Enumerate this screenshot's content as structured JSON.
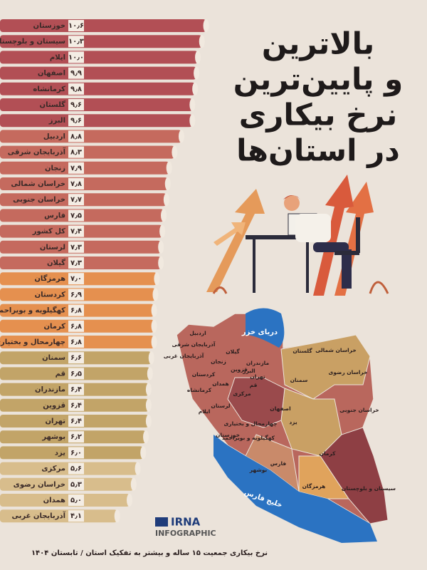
{
  "title_lines": [
    "بالاترین",
    "و پایین‌ترین",
    "نرخ بیکاری",
    "در استان‌ها"
  ],
  "chart_data": {
    "type": "bar",
    "orientation": "horizontal",
    "categories": [
      "خوزستان",
      "سیستان و بلوچستان",
      "ایلام",
      "اصفهان",
      "کرمانشاه",
      "گلستان",
      "البرز",
      "اردبیل",
      "آذربایجان شرقی",
      "زنجان",
      "خراسان شمالی",
      "خراسان جنوبی",
      "فارس",
      "کل کشور",
      "لرستان",
      "گیلان",
      "هرمزگان",
      "کردستان",
      "کهگیلویه و بویراحمد",
      "کرمان",
      "چهارمحال و بختیاری",
      "سمنان",
      "قم",
      "مازندران",
      "قزوین",
      "تهران",
      "بوشهر",
      "یزد",
      "مرکزی",
      "خراسان رضوی",
      "همدان",
      "آذربایجان غربی"
    ],
    "values": [
      10.6,
      10.3,
      10.0,
      9.9,
      9.8,
      9.6,
      9.6,
      8.8,
      8.3,
      7.9,
      7.8,
      7.7,
      7.5,
      7.4,
      7.3,
      7.3,
      7.0,
      6.9,
      6.8,
      6.8,
      6.8,
      6.6,
      6.5,
      6.4,
      6.4,
      6.4,
      6.2,
      6.0,
      5.6,
      5.3,
      5.0,
      4.1
    ],
    "value_labels": [
      "۱۰٫۶",
      "۱۰٫۳",
      "۱۰٫۰",
      "۹٫۹",
      "۹٫۸",
      "۹٫۶",
      "۹٫۶",
      "۸٫۸",
      "۸٫۳",
      "۷٫۹",
      "۷٫۸",
      "۷٫۷",
      "۷٫۵",
      "۷٫۴",
      "۷٫۳",
      "۷٫۳",
      "۷٫۰",
      "۶٫۹",
      "۶٫۸",
      "۶٫۸",
      "۶٫۸",
      "۶٫۶",
      "۶٫۵",
      "۶٫۴",
      "۶٫۴",
      "۶٫۴",
      "۶٫۲",
      "۶٫۰",
      "۵٫۶",
      "۵٫۳",
      "۵٫۰",
      "۴٫۱"
    ],
    "colors": [
      "#b24f55",
      "#b24f55",
      "#b24f55",
      "#b24f55",
      "#b24f55",
      "#b24f55",
      "#b24f55",
      "#c56a5e",
      "#c56a5e",
      "#c56a5e",
      "#c56a5e",
      "#c56a5e",
      "#c56a5e",
      "#c56a5e",
      "#c56a5e",
      "#c56a5e",
      "#e5904f",
      "#e5904f",
      "#e5904f",
      "#e5904f",
      "#e5904f",
      "#c2a468",
      "#c2a468",
      "#c2a468",
      "#c2a468",
      "#c2a468",
      "#c2a468",
      "#c2a468",
      "#d8bd8c",
      "#d8bd8c",
      "#d8bd8c",
      "#d8bd8c"
    ]
  },
  "map": {
    "labels": [
      "اردبیل",
      "آذربایجان شرقی",
      "آذربایجان غربی",
      "گلستان",
      "خراسان شمالی",
      "گیلان",
      "زنجان",
      "مازندران",
      "کردستان",
      "قزوین",
      "البرز",
      "تهران",
      "قم",
      "همدان",
      "سمنان",
      "خراسان رضوی",
      "مرکزی",
      "کرمانشاه",
      "لرستان",
      "ایلام",
      "اصفهان",
      "خراسان جنوبی",
      "چهارمحال و بختیاری",
      "یزد",
      "خوزستان",
      "کهگیلویه و بویراحمد",
      "کرمان",
      "بوشهر",
      "فارس",
      "هرمزگان",
      "سیستان و بلوچستان"
    ],
    "caspian": "دریای خزر",
    "gulf": "خلیج فارس"
  },
  "logo": {
    "name": "IRNA",
    "sub": "INFOGRAPHIC"
  },
  "caption": "نرخ بیکاری جمعیت ۱۵ ساله و بیشتر به تفکیک استان / تابستان ۱۴۰۴"
}
